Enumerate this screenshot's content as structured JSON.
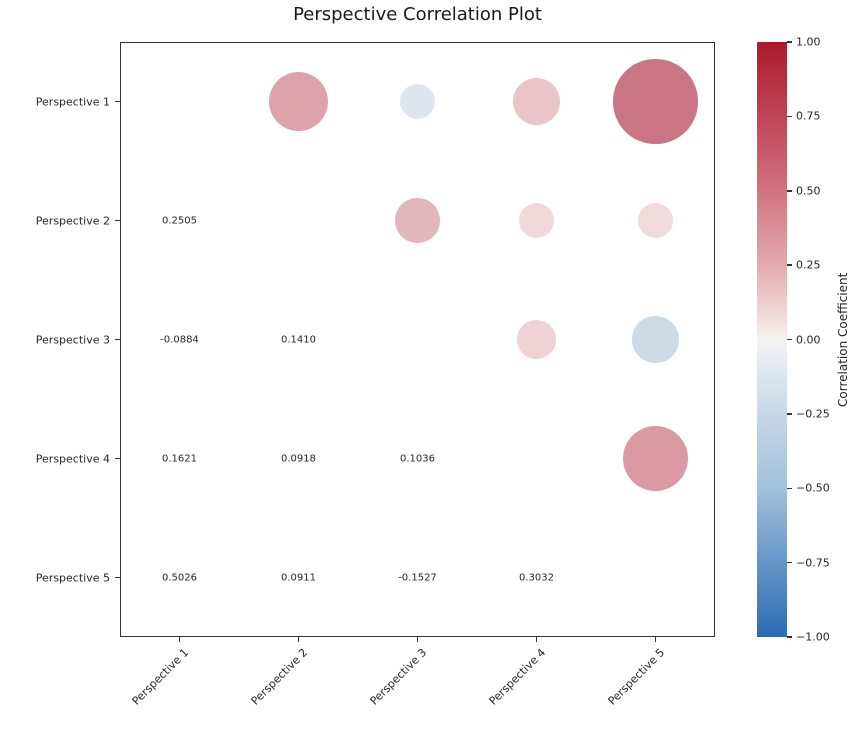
{
  "title": "Perspective Correlation Plot",
  "chart_data": {
    "type": "scatter",
    "subtype": "correlation-bubble-matrix",
    "title": "Perspective Correlation Plot",
    "categories": [
      "Perspective 1",
      "Perspective 2",
      "Perspective 3",
      "Perspective 4",
      "Perspective 5"
    ],
    "layout_note": "upper triangle shows bubbles sized and colored by correlation; lower triangle shows numeric correlation values; diagonal empty",
    "bubble_radius_scale": "radius_px = 59.3 * sqrt(abs(r))",
    "correlations": [
      {
        "i": 1,
        "j": 2,
        "r": 0.2505,
        "display": "0.2505",
        "bubble_color": "#dca3ac"
      },
      {
        "i": 1,
        "j": 3,
        "r": -0.0884,
        "display": "-0.0884",
        "bubble_color": "#dfe5ec"
      },
      {
        "i": 1,
        "j": 4,
        "r": 0.1621,
        "display": "0.1621",
        "bubble_color": "#e9c5c9"
      },
      {
        "i": 1,
        "j": 5,
        "r": 0.5026,
        "display": "0.5026",
        "bubble_color": "#ca7583"
      },
      {
        "i": 2,
        "j": 3,
        "r": 0.141,
        "display": "0.1410",
        "bubble_color": "#e2b6bc"
      },
      {
        "i": 2,
        "j": 4,
        "r": 0.0918,
        "display": "0.0918",
        "bubble_color": "#f1d8da"
      },
      {
        "i": 2,
        "j": 5,
        "r": 0.0911,
        "display": "0.0911",
        "bubble_color": "#f0dadc"
      },
      {
        "i": 3,
        "j": 4,
        "r": 0.1036,
        "display": "0.1036",
        "bubble_color": "#efd2d6"
      },
      {
        "i": 3,
        "j": 5,
        "r": -0.1527,
        "display": "-0.1527",
        "bubble_color": "#cddbe7"
      },
      {
        "i": 4,
        "j": 5,
        "r": 0.3032,
        "display": "0.3032",
        "bubble_color": "#db99a4"
      }
    ],
    "colorbar": {
      "label": "Correlation Coefficient",
      "tick_labels": [
        "1.00",
        "0.75",
        "0.50",
        "0.25",
        "0.00",
        "−0.25",
        "−0.50",
        "−0.75",
        "−1.00"
      ],
      "tick_values": [
        1.0,
        0.75,
        0.5,
        0.25,
        0.0,
        -0.25,
        -0.5,
        -0.75,
        -1.0
      ],
      "range": [
        -1,
        1
      ],
      "gradient_stops": [
        {
          "pos": 0,
          "color": "#ab1a2d"
        },
        {
          "pos": 12.5,
          "color": "#bf4457"
        },
        {
          "pos": 25,
          "color": "#d0737f"
        },
        {
          "pos": 37.5,
          "color": "#e3aab0"
        },
        {
          "pos": 47,
          "color": "#f2e0de"
        },
        {
          "pos": 50,
          "color": "#f7f4f1"
        },
        {
          "pos": 53,
          "color": "#e9edf2"
        },
        {
          "pos": 62.5,
          "color": "#c6d7e6"
        },
        {
          "pos": 75,
          "color": "#a2c1db"
        },
        {
          "pos": 87.5,
          "color": "#6595c8"
        },
        {
          "pos": 100,
          "color": "#2b6cb3"
        }
      ]
    },
    "spine_color": "#333333",
    "text_color": "#262626"
  }
}
